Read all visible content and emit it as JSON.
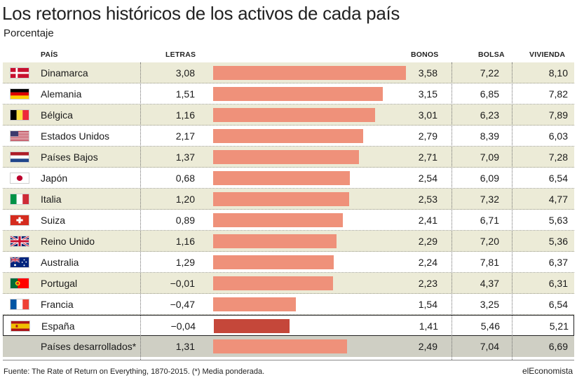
{
  "title": "Los retornos históricos de los activos de cada país",
  "subtitle": "Porcentaje",
  "headers": {
    "pais": "PAÍS",
    "letras": "LETRAS",
    "bonos": "BONOS",
    "bolsa": "BOLSA",
    "vivienda": "VIVIENDA"
  },
  "source": "Fuente: The Rate of Return on Everything, 1870-2015. (*) Media ponderada.",
  "brand": "elEconomista",
  "colors": {
    "bar": "#ef917a",
    "highlight_bar": "#c5473a",
    "row_alt": "#ecebd7",
    "total_row": "#cfcfc4"
  },
  "chart_data": {
    "type": "table",
    "bar_column": "bonos",
    "columns": [
      "PAÍS",
      "LETRAS",
      "BONOS",
      "BOLSA",
      "VIVIENDA"
    ],
    "rows": [
      {
        "flag": "denmark-flag-icon",
        "country": "Dinamarca",
        "letras": "3,08",
        "bonos": "3,58",
        "bolsa": "7,22",
        "vivienda": "8,10",
        "bonos_value": 3.58
      },
      {
        "flag": "germany-flag-icon",
        "country": "Alemania",
        "letras": "1,51",
        "bonos": "3,15",
        "bolsa": "6,85",
        "vivienda": "7,82",
        "bonos_value": 3.15
      },
      {
        "flag": "belgium-flag-icon",
        "country": "Bélgica",
        "letras": "1,16",
        "bonos": "3,01",
        "bolsa": "6,23",
        "vivienda": "7,89",
        "bonos_value": 3.01
      },
      {
        "flag": "usa-flag-icon",
        "country": "Estados Unidos",
        "letras": "2,17",
        "bonos": "2,79",
        "bolsa": "8,39",
        "vivienda": "6,03",
        "bonos_value": 2.79
      },
      {
        "flag": "netherlands-flag-icon",
        "country": "Países Bajos",
        "letras": "1,37",
        "bonos": "2,71",
        "bolsa": "7,09",
        "vivienda": "7,28",
        "bonos_value": 2.71
      },
      {
        "flag": "japan-flag-icon",
        "country": "Japón",
        "letras": "0,68",
        "bonos": "2,54",
        "bolsa": "6,09",
        "vivienda": "6,54",
        "bonos_value": 2.54
      },
      {
        "flag": "italy-flag-icon",
        "country": "Italia",
        "letras": "1,20",
        "bonos": "2,53",
        "bolsa": "7,32",
        "vivienda": "4,77",
        "bonos_value": 2.53
      },
      {
        "flag": "switzerland-flag-icon",
        "country": "Suiza",
        "letras": "0,89",
        "bonos": "2,41",
        "bolsa": "6,71",
        "vivienda": "5,63",
        "bonos_value": 2.41
      },
      {
        "flag": "uk-flag-icon",
        "country": "Reino Unido",
        "letras": "1,16",
        "bonos": "2,29",
        "bolsa": "7,20",
        "vivienda": "5,36",
        "bonos_value": 2.29
      },
      {
        "flag": "australia-flag-icon",
        "country": "Australia",
        "letras": "1,29",
        "bonos": "2,24",
        "bolsa": "7,81",
        "vivienda": "6,37",
        "bonos_value": 2.24
      },
      {
        "flag": "portugal-flag-icon",
        "country": "Portugal",
        "letras": "−0,01",
        "bonos": "2,23",
        "bolsa": "4,37",
        "vivienda": "6,31",
        "bonos_value": 2.23
      },
      {
        "flag": "france-flag-icon",
        "country": "Francia",
        "letras": "−0,47",
        "bonos": "1,54",
        "bolsa": "3,25",
        "vivienda": "6,54",
        "bonos_value": 1.54
      },
      {
        "flag": "spain-flag-icon",
        "country": "España",
        "letras": "−0,04",
        "bonos": "1,41",
        "bolsa": "5,46",
        "vivienda": "5,21",
        "bonos_value": 1.41,
        "highlight": true
      },
      {
        "flag": "",
        "country": "Países desarrollados*",
        "letras": "1,31",
        "bonos": "2,49",
        "bolsa": "7,04",
        "vivienda": "6,69",
        "bonos_value": 2.49,
        "total": true
      }
    ]
  }
}
